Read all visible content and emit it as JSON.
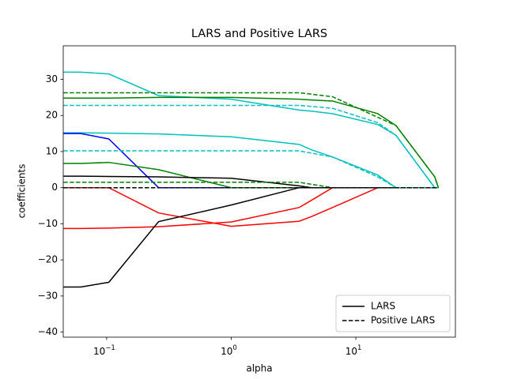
{
  "chart_data": {
    "type": "line",
    "title": "LARS and Positive LARS",
    "x_label": "alpha",
    "y_label": "coefficients",
    "xscale": "log",
    "xlim": [
      0.0448,
      63
    ],
    "ylim": [
      -41.4,
      39.3
    ],
    "xticks": [
      {
        "value": 0.1,
        "label": "10",
        "exponent": "−1"
      },
      {
        "value": 1,
        "label": "10",
        "exponent": "0"
      },
      {
        "value": 10,
        "label": "10",
        "exponent": "1"
      }
    ],
    "yticks": [
      {
        "value": -40,
        "label": "−40"
      },
      {
        "value": -30,
        "label": "−30"
      },
      {
        "value": -20,
        "label": "−20"
      },
      {
        "value": -10,
        "label": "−10"
      },
      0,
      10,
      20,
      30
    ],
    "grid": false,
    "series": [
      {
        "color": "#00bfbf",
        "dash": false,
        "x": [
          0.045,
          0.062,
          0.104,
          0.261,
          1,
          3.5,
          4.4,
          6.5,
          15,
          21,
          43,
          46
        ],
        "values": [
          32,
          32,
          31.5,
          25.5,
          24.5,
          21.5,
          21.2,
          20.5,
          17.5,
          14.5,
          0,
          0
        ]
      },
      {
        "color": "#008000",
        "dash": false,
        "x": [
          0.045,
          0.062,
          0.104,
          0.261,
          1,
          3.5,
          4.4,
          6.5,
          15,
          21,
          43,
          46
        ],
        "values": [
          24.8,
          24.8,
          24.8,
          25,
          25,
          24.5,
          24.3,
          24,
          20.5,
          17.2,
          3,
          0
        ]
      },
      {
        "color": "#00bfbf",
        "dash": false,
        "x": [
          0.045,
          0.062,
          0.104,
          0.261,
          1,
          3.5,
          4.4,
          6.5,
          15,
          21,
          43,
          46
        ],
        "values": [
          15.2,
          15.2,
          15.1,
          14.9,
          14.1,
          12,
          10.5,
          8.5,
          3.5,
          0,
          0,
          0
        ]
      },
      {
        "color": "#0000ff",
        "dash": false,
        "x": [
          0.045,
          0.062,
          0.104,
          0.261,
          1,
          3.5,
          4.4,
          6.5,
          15,
          21,
          43,
          46
        ],
        "values": [
          15,
          15,
          13.5,
          0,
          0,
          0,
          0,
          0,
          0,
          0,
          0,
          0
        ]
      },
      {
        "color": "#008000",
        "dash": false,
        "x": [
          0.045,
          0.062,
          0.104,
          0.261,
          1,
          3.5,
          4.4,
          6.5,
          15,
          21,
          43,
          46
        ],
        "values": [
          6.7,
          6.7,
          7,
          5,
          0,
          0,
          0,
          0,
          0,
          0,
          0,
          0
        ]
      },
      {
        "color": "#000000",
        "dash": false,
        "x": [
          0.045,
          0.062,
          0.104,
          0.261,
          1,
          3.5,
          4.4,
          6.5,
          15,
          21,
          43,
          46
        ],
        "values": [
          3.2,
          3.2,
          3.1,
          3,
          2.6,
          0.5,
          0,
          0,
          0,
          0,
          0,
          0
        ]
      },
      {
        "color": "#ff0000",
        "dash": false,
        "x": [
          0.045,
          0.062,
          0.104,
          0.261,
          1,
          3.5,
          4.4,
          6.5,
          15,
          21,
          43,
          46
        ],
        "values": [
          0,
          0,
          0,
          -7,
          -10.7,
          -9.3,
          -8,
          -5.5,
          0,
          0,
          0,
          0
        ]
      },
      {
        "color": "#ff0000",
        "dash": false,
        "x": [
          0.045,
          0.062,
          0.104,
          0.261,
          1,
          3.5,
          4.4,
          6.5,
          15,
          21,
          43,
          46
        ],
        "values": [
          -11.3,
          -11.3,
          -11.2,
          -10.8,
          -9.5,
          -5.5,
          -3.5,
          0,
          0,
          0,
          0,
          0
        ]
      },
      {
        "color": "#000000",
        "dash": false,
        "x": [
          0.045,
          0.062,
          0.104,
          0.261,
          1,
          3.5,
          4.4,
          6.5,
          15,
          21,
          43,
          46
        ],
        "values": [
          -27.5,
          -27.5,
          -26.2,
          -9.4,
          -4.8,
          0,
          0,
          0,
          0,
          0,
          0,
          0
        ]
      },
      {
        "color": "#008000",
        "dash": true,
        "x": [
          0.045,
          0.062,
          0.104,
          0.261,
          1,
          3.5,
          6.5,
          15,
          21,
          43,
          46
        ],
        "values": [
          26.3,
          26.3,
          26.3,
          26.3,
          26.3,
          26.3,
          25.2,
          19.5,
          17.2,
          3,
          0
        ]
      },
      {
        "color": "#00bfbf",
        "dash": true,
        "x": [
          0.045,
          0.062,
          0.104,
          0.261,
          1,
          3.5,
          6.5,
          15,
          21,
          43,
          46
        ],
        "values": [
          22.8,
          22.8,
          22.8,
          22.8,
          22.8,
          22.8,
          22,
          18,
          14.5,
          0,
          0
        ]
      },
      {
        "color": "#00bfbf",
        "dash": true,
        "x": [
          0.045,
          0.062,
          0.104,
          0.261,
          1,
          3.5,
          6.5,
          15,
          21,
          43,
          46
        ],
        "values": [
          10.2,
          10.2,
          10.2,
          10.2,
          10.2,
          10.2,
          8.5,
          3,
          0,
          0,
          0
        ]
      },
      {
        "color": "#008000",
        "dash": true,
        "x": [
          0.045,
          0.062,
          0.104,
          0.261,
          1,
          3.5,
          6.5,
          15,
          21,
          43,
          46
        ],
        "values": [
          1.5,
          1.5,
          1.5,
          1.5,
          1.5,
          1.5,
          0,
          0,
          0,
          0,
          0
        ]
      },
      {
        "color": "#000000",
        "dash": true,
        "x": [
          0.045,
          0.062,
          0.104,
          0.261,
          1,
          3.5,
          6.5,
          15,
          21,
          43,
          46
        ],
        "values": [
          0,
          0,
          0,
          0,
          0,
          0,
          0,
          0,
          0,
          0,
          0
        ]
      }
    ],
    "legend": {
      "loc": "lower right",
      "entries": [
        {
          "label": "LARS",
          "color": "#000000",
          "dash": false
        },
        {
          "label": "Positive LARS",
          "color": "#000000",
          "dash": true
        }
      ]
    }
  }
}
